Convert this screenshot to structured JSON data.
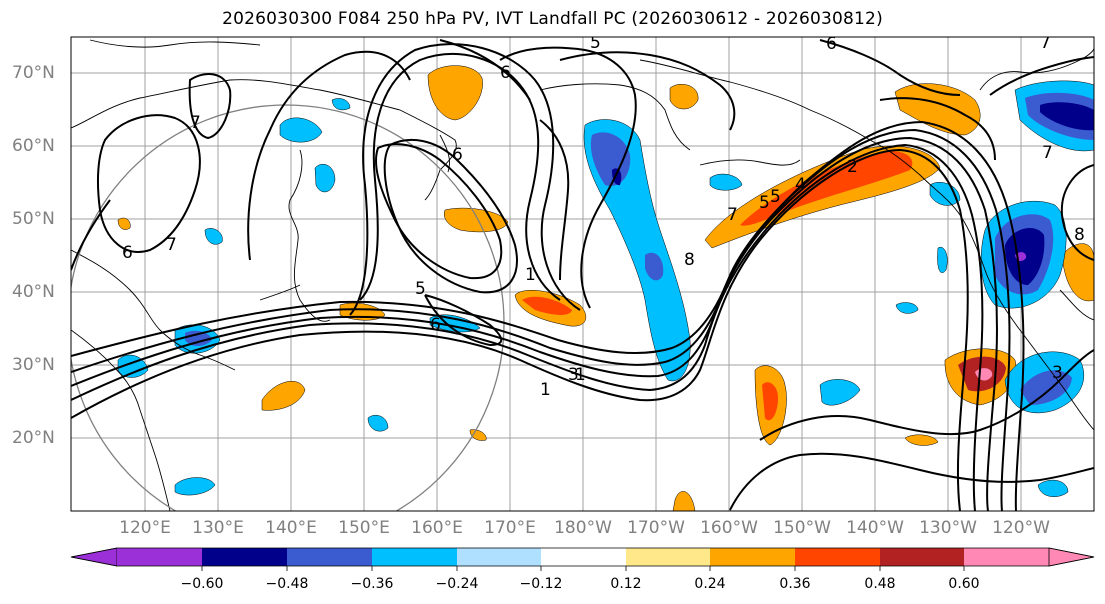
{
  "title": "2026030300 F084 250 hPa PV, IVT Landfall PC (2026030612 - 2026030812)",
  "lat_labels": [
    "70°N",
    "60°N",
    "50°N",
    "40°N",
    "30°N",
    "20°N"
  ],
  "lon_labels": [
    "120°E",
    "130°E",
    "140°E",
    "150°E",
    "160°E",
    "170°E",
    "180°W",
    "170°W",
    "160°W",
    "150°W",
    "140°W",
    "130°W",
    "120°W"
  ],
  "contour_labels": [
    "5",
    "6",
    "1",
    "7",
    "6",
    "7",
    "5",
    "6",
    "3",
    "1",
    "8",
    "7",
    "6",
    "2",
    "6",
    "5",
    "7",
    "8",
    "3",
    "5",
    "4",
    "7",
    "1",
    "8"
  ],
  "colorbar": {
    "tick_labels": [
      "−0.60",
      "−0.48",
      "−0.36",
      "−0.24",
      "−0.12",
      "0.12",
      "0.24",
      "0.36",
      "0.48",
      "0.60"
    ],
    "colors": [
      "#9b30d9",
      "#00008b",
      "#3b5bd1",
      "#00bfff",
      "#b0e0ff",
      "#ffffff",
      "#ffe88a",
      "#ffa500",
      "#ff4500",
      "#b22222",
      "#ff88b4"
    ],
    "extend": "both"
  }
}
